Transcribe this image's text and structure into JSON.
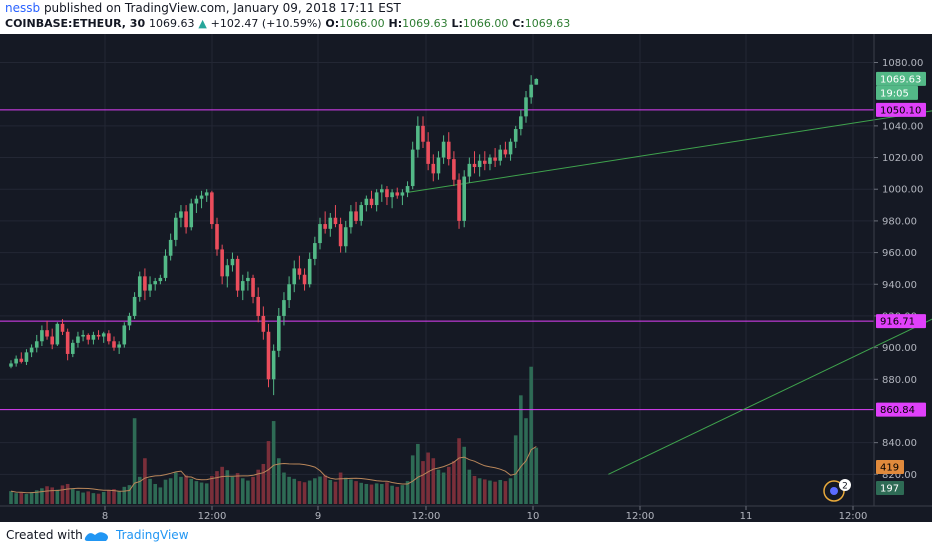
{
  "header": {
    "username": "nessb",
    "published_text": "published on TradingView.com, January 09, 2018 17:11 EST",
    "symbol": "COINBASE:ETHEUR, 30",
    "last_price": "1069.63",
    "change": "+102.47 (+10.59%)",
    "open_label": "O:",
    "open_value": "1066.00",
    "high_label": "H:",
    "high_value": "1069.63",
    "low_label": "L:",
    "low_value": "1066.00",
    "close_label": "C:",
    "close_value": "1069.63"
  },
  "footer": {
    "created_with": "Created with",
    "brand": "TradingView"
  },
  "colors": {
    "background": "#151924",
    "grid": "#232734",
    "bull": "#53b987",
    "bear": "#eb4d5c",
    "vol_bull": "#2e6b55",
    "vol_bear": "#7a2f3a",
    "level": "#e040fb",
    "trendline": "#3fa34d",
    "ma": "#b9865a"
  },
  "chart_data": {
    "type": "candlestick",
    "y_axis": {
      "ticks": [
        "1080.00",
        "1040.00",
        "1020.00",
        "1000.00",
        "980.00",
        "960.00",
        "940.00",
        "920.00",
        "900.00",
        "880.00",
        "840.00",
        "820.00"
      ],
      "range": [
        800,
        1098
      ]
    },
    "x_axis": {
      "ticks": [
        "8",
        "12:00",
        "9",
        "12:00",
        "10",
        "12:00",
        "11",
        "12:00"
      ]
    },
    "price_labels": {
      "last": "1069.63",
      "countdown": "19:05",
      "level_high": "1050.10",
      "level_mid": "916.71",
      "level_low": "860.84",
      "volume_ma": "419",
      "volume_last": "197"
    },
    "horizontal_levels": [
      1050.1,
      916.71,
      860.84
    ],
    "trendlines": [
      {
        "from": [
          77,
          998
        ],
        "to": [
          259,
          1090
        ]
      },
      {
        "from": [
          116,
          820
        ],
        "to": [
          270,
          1060
        ]
      }
    ],
    "volume_max": 1000,
    "ohlcv": [
      [
        888,
        892,
        887,
        890,
        45
      ],
      [
        890,
        895,
        888,
        893,
        38
      ],
      [
        893,
        897,
        890,
        891,
        40
      ],
      [
        891,
        899,
        889,
        897,
        35
      ],
      [
        897,
        902,
        894,
        900,
        42
      ],
      [
        900,
        908,
        897,
        904,
        48
      ],
      [
        904,
        914,
        901,
        911,
        55
      ],
      [
        911,
        917,
        905,
        907,
        62
      ],
      [
        907,
        912,
        899,
        902,
        58
      ],
      [
        902,
        916,
        901,
        915,
        50
      ],
      [
        915,
        918,
        908,
        910,
        65
      ],
      [
        910,
        912,
        892,
        896,
        70
      ],
      [
        896,
        905,
        894,
        903,
        52
      ],
      [
        903,
        910,
        900,
        907,
        46
      ],
      [
        907,
        911,
        904,
        908,
        40
      ],
      [
        908,
        909,
        902,
        905,
        44
      ],
      [
        905,
        910,
        902,
        908,
        38
      ],
      [
        908,
        911,
        905,
        907,
        36
      ],
      [
        907,
        910,
        903,
        909,
        42
      ],
      [
        909,
        911,
        902,
        904,
        48
      ],
      [
        904,
        907,
        898,
        900,
        52
      ],
      [
        900,
        904,
        896,
        902,
        45
      ],
      [
        902,
        916,
        900,
        914,
        60
      ],
      [
        914,
        922,
        911,
        920,
        66
      ],
      [
        920,
        935,
        918,
        932,
        300
      ],
      [
        932,
        948,
        929,
        945,
        95
      ],
      [
        945,
        950,
        930,
        936,
        160
      ],
      [
        936,
        945,
        932,
        940,
        88
      ],
      [
        940,
        944,
        936,
        942,
        70
      ],
      [
        942,
        946,
        940,
        944,
        58
      ],
      [
        944,
        962,
        942,
        958,
        85
      ],
      [
        958,
        972,
        955,
        968,
        90
      ],
      [
        968,
        985,
        964,
        982,
        110
      ],
      [
        982,
        990,
        976,
        986,
        95
      ],
      [
        986,
        990,
        972,
        976,
        100
      ],
      [
        976,
        994,
        974,
        991,
        88
      ],
      [
        991,
        996,
        985,
        994,
        80
      ],
      [
        994,
        999,
        988,
        996,
        75
      ],
      [
        996,
        1000,
        992,
        998,
        72
      ],
      [
        998,
        999,
        975,
        978,
        98
      ],
      [
        978,
        982,
        958,
        962,
        115
      ],
      [
        962,
        965,
        940,
        945,
        130
      ],
      [
        945,
        956,
        938,
        952,
        118
      ],
      [
        952,
        960,
        948,
        956,
        95
      ],
      [
        956,
        958,
        932,
        936,
        108
      ],
      [
        936,
        946,
        930,
        942,
        90
      ],
      [
        942,
        948,
        936,
        944,
        82
      ],
      [
        944,
        946,
        928,
        932,
        95
      ],
      [
        932,
        938,
        916,
        920,
        120
      ],
      [
        920,
        926,
        905,
        910,
        140
      ],
      [
        910,
        915,
        875,
        880,
        220
      ],
      [
        880,
        902,
        870,
        898,
        290
      ],
      [
        898,
        925,
        894,
        920,
        160
      ],
      [
        920,
        935,
        914,
        930,
        110
      ],
      [
        930,
        945,
        925,
        940,
        95
      ],
      [
        940,
        955,
        935,
        950,
        88
      ],
      [
        950,
        958,
        943,
        946,
        80
      ],
      [
        946,
        950,
        936,
        940,
        76
      ],
      [
        940,
        960,
        938,
        956,
        82
      ],
      [
        956,
        970,
        952,
        966,
        90
      ],
      [
        966,
        982,
        962,
        978,
        96
      ],
      [
        978,
        986,
        972,
        975,
        100
      ],
      [
        975,
        985,
        970,
        982,
        84
      ],
      [
        982,
        990,
        976,
        978,
        78
      ],
      [
        978,
        982,
        960,
        964,
        110
      ],
      [
        964,
        980,
        960,
        976,
        92
      ],
      [
        976,
        990,
        972,
        986,
        86
      ],
      [
        986,
        992,
        978,
        980,
        80
      ],
      [
        980,
        992,
        977,
        990,
        74
      ],
      [
        990,
        996,
        986,
        994,
        70
      ],
      [
        994,
        999,
        988,
        990,
        68
      ],
      [
        990,
        1000,
        986,
        998,
        72
      ],
      [
        998,
        1003,
        992,
        1000,
        70
      ],
      [
        1000,
        1002,
        990,
        995,
        76
      ],
      [
        995,
        1000,
        988,
        998,
        64
      ],
      [
        998,
        1001,
        994,
        996,
        60
      ],
      [
        996,
        1000,
        990,
        998,
        66
      ],
      [
        998,
        1005,
        995,
        1002,
        80
      ],
      [
        1002,
        1030,
        1000,
        1025,
        170
      ],
      [
        1025,
        1046,
        1020,
        1040,
        210
      ],
      [
        1040,
        1046,
        1026,
        1030,
        150
      ],
      [
        1030,
        1036,
        1012,
        1016,
        180
      ],
      [
        1016,
        1022,
        1005,
        1010,
        160
      ],
      [
        1010,
        1024,
        1006,
        1020,
        120
      ],
      [
        1020,
        1034,
        1016,
        1030,
        110
      ],
      [
        1030,
        1036,
        1015,
        1019,
        130
      ],
      [
        1019,
        1024,
        1002,
        1006,
        150
      ],
      [
        1006,
        1010,
        975,
        980,
        230
      ],
      [
        980,
        1012,
        976,
        1008,
        200
      ],
      [
        1008,
        1020,
        1004,
        1016,
        120
      ],
      [
        1016,
        1024,
        1010,
        1014,
        98
      ],
      [
        1014,
        1022,
        1008,
        1018,
        90
      ],
      [
        1018,
        1024,
        1012,
        1016,
        86
      ],
      [
        1016,
        1022,
        1012,
        1020,
        82
      ],
      [
        1020,
        1026,
        1014,
        1018,
        78
      ],
      [
        1018,
        1028,
        1015,
        1025,
        84
      ],
      [
        1025,
        1030,
        1020,
        1022,
        80
      ],
      [
        1022,
        1032,
        1018,
        1030,
        90
      ],
      [
        1030,
        1040,
        1026,
        1038,
        240
      ],
      [
        1038,
        1050,
        1034,
        1046,
        380
      ],
      [
        1046,
        1062,
        1042,
        1058,
        300
      ],
      [
        1058,
        1072,
        1054,
        1066,
        480
      ],
      [
        1066,
        1070,
        1066,
        1069.63,
        197
      ]
    ]
  }
}
